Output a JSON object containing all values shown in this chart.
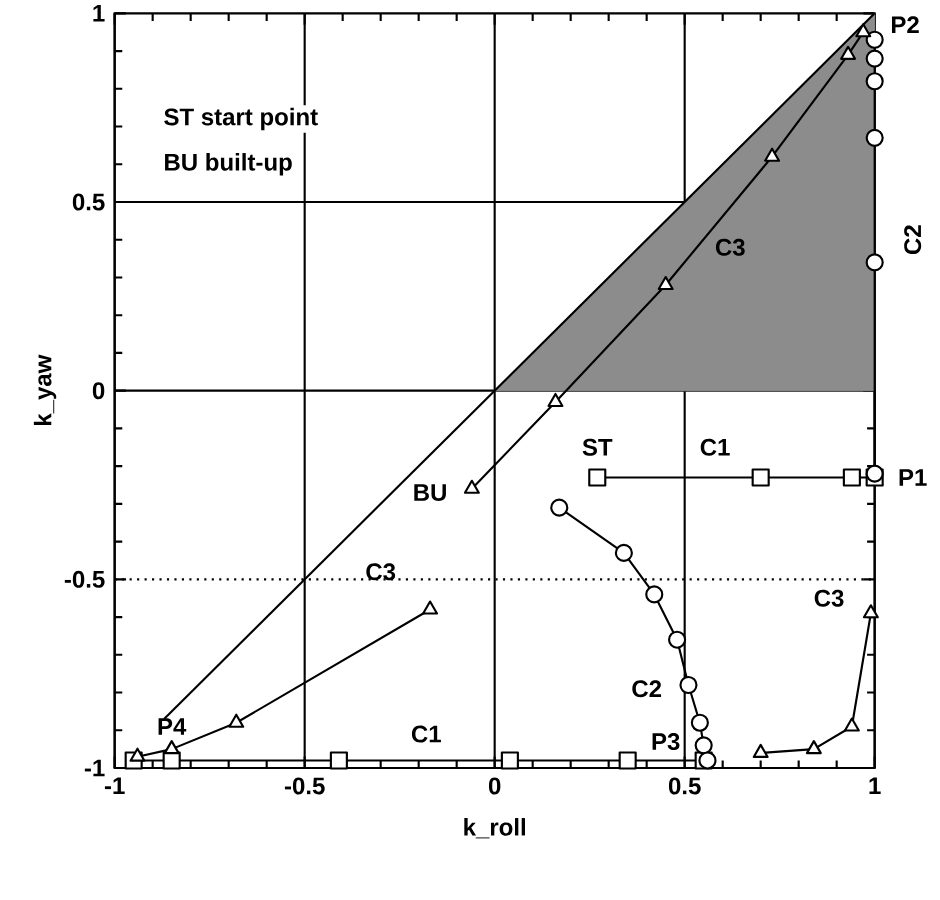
{
  "chart_data": {
    "type": "line",
    "xlabel": "k_roll",
    "ylabel": "k_yaw",
    "xlim": [
      -1,
      1
    ],
    "ylim": [
      -1,
      1
    ],
    "xticks": [
      -1,
      -0.5,
      0,
      0.5,
      1
    ],
    "yticks": [
      -1,
      -0.5,
      0,
      0.5,
      1
    ],
    "grid": "x",
    "line_style": "solid",
    "series": [
      {
        "type": "area",
        "color": "#8c8c8c",
        "x": [
          0,
          1
        ],
        "values": [
          0,
          1
        ],
        "marker": "none"
      },
      {
        "type": "line",
        "color": "#000000",
        "x": [
          -0.87,
          1
        ],
        "values": [
          -0.87,
          1
        ],
        "marker": "none"
      },
      {
        "type": "line",
        "color": "#000000",
        "x": [
          0.27,
          0.7,
          0.94,
          1.0
        ],
        "values": [
          -0.23,
          -0.23,
          -0.23,
          -0.23
        ],
        "marker": "square"
      },
      {
        "type": "line",
        "color": "#000000",
        "x": [
          -0.95,
          -0.85,
          -0.41,
          0.04,
          0.35,
          0.55
        ],
        "values": [
          -0.98,
          -0.98,
          -0.98,
          -0.98,
          -0.98,
          -0.98
        ],
        "marker": "square"
      },
      {
        "type": "line",
        "color": "#000000",
        "x": [
          0.17,
          0.34,
          0.42,
          0.48,
          0.51,
          0.54,
          0.55,
          0.56
        ],
        "values": [
          -0.31,
          -0.43,
          -0.54,
          -0.66,
          -0.78,
          -0.88,
          -0.94,
          -0.98
        ],
        "marker": "circle"
      },
      {
        "type": "line",
        "color": "#000000",
        "x": [
          1,
          1,
          1,
          1,
          1,
          1
        ],
        "values": [
          -0.22,
          0.34,
          0.67,
          0.82,
          0.88,
          0.93
        ],
        "marker": "circle"
      },
      {
        "type": "line",
        "color": "#000000",
        "x": [
          0.97,
          0.93,
          0.73,
          0.45,
          0.16,
          -0.06
        ],
        "values": [
          0.95,
          0.89,
          0.62,
          0.28,
          -0.03,
          -0.26
        ],
        "marker": "triangle"
      },
      {
        "type": "line",
        "color": "#000000",
        "x": [
          -0.17,
          -0.68,
          -0.85,
          -0.94
        ],
        "values": [
          -0.58,
          -0.88,
          -0.95,
          -0.97
        ],
        "marker": "triangle"
      },
      {
        "type": "line",
        "color": "#000000",
        "x": [
          0.7,
          0.84,
          0.94,
          0.99
        ],
        "values": [
          -0.96,
          -0.95,
          -0.89,
          -0.59
        ],
        "marker": "triangle"
      }
    ],
    "ref_lines": [
      {
        "axis": "y",
        "value": 0.5,
        "line_style": "solid"
      },
      {
        "axis": "y",
        "value": 0,
        "line_style": "solid"
      },
      {
        "axis": "y",
        "value": -0.5,
        "line_style": "dotted"
      }
    ],
    "annotations": [
      "ST start point",
      "BU built-up",
      "P1",
      "P2",
      "P3",
      "P4",
      "ST",
      "BU",
      "C1",
      "C1",
      "C2",
      "C2",
      "C3",
      "C3",
      "C3"
    ]
  }
}
